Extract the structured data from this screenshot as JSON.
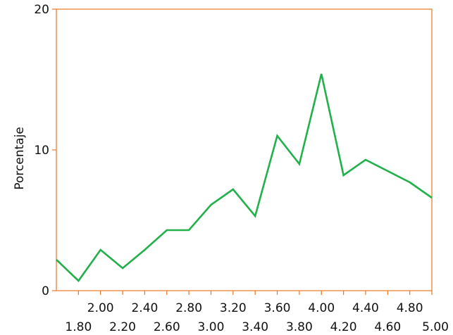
{
  "chart_data": {
    "type": "line",
    "title": "",
    "xlabel": "",
    "ylabel": "Porcentaje",
    "xlim": [
      1.6,
      5.0
    ],
    "ylim": [
      0,
      20
    ],
    "grid": false,
    "legend": "none",
    "y_ticks": [
      {
        "value": 0,
        "label": "0"
      },
      {
        "value": 10,
        "label": "10"
      },
      {
        "value": 20,
        "label": "20"
      }
    ],
    "x_ticks_upper": [
      {
        "value": 2.0,
        "label": "2.00"
      },
      {
        "value": 2.4,
        "label": "2.40"
      },
      {
        "value": 2.8,
        "label": "2.80"
      },
      {
        "value": 3.2,
        "label": "3.20"
      },
      {
        "value": 3.6,
        "label": "3.60"
      },
      {
        "value": 4.0,
        "label": "4.00"
      },
      {
        "value": 4.4,
        "label": "4.40"
      },
      {
        "value": 4.8,
        "label": "4.80"
      }
    ],
    "x_ticks_lower": [
      {
        "value": 1.8,
        "label": "1.80"
      },
      {
        "value": 2.2,
        "label": "2.20"
      },
      {
        "value": 2.6,
        "label": "2.60"
      },
      {
        "value": 3.0,
        "label": "3.00"
      },
      {
        "value": 3.4,
        "label": "3.40"
      },
      {
        "value": 3.8,
        "label": "3.80"
      },
      {
        "value": 4.2,
        "label": "4.20"
      },
      {
        "value": 4.6,
        "label": "4.60"
      },
      {
        "value": 5.0,
        "label": "5.00"
      }
    ],
    "series": [
      {
        "x": [
          1.6,
          1.8,
          2.0,
          2.2,
          2.4,
          2.6,
          2.8,
          3.0,
          3.2,
          3.4,
          3.6,
          3.8,
          4.0,
          4.2,
          4.4,
          4.6,
          4.8,
          5.0
        ],
        "y": [
          2.2,
          0.7,
          2.9,
          1.6,
          2.9,
          4.3,
          4.3,
          6.1,
          7.2,
          5.3,
          11.0,
          9.0,
          15.4,
          8.2,
          9.3,
          8.5,
          7.7,
          6.6
        ],
        "color": "#22b04b"
      }
    ],
    "colors": {
      "frame": "#e87722",
      "line": "#22b04b",
      "text": "#111111"
    }
  }
}
